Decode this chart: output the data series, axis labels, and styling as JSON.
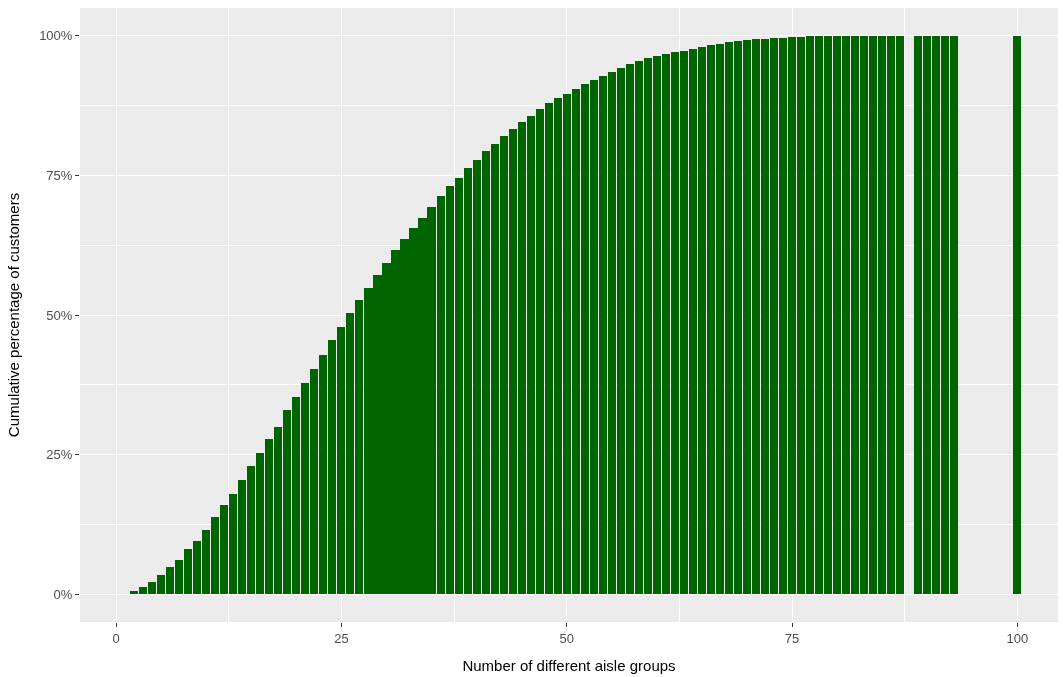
{
  "chart_data": {
    "type": "bar",
    "xlabel": "Number of different aisle groups",
    "ylabel": "Cumulative percentage of customers",
    "color": "#006400",
    "x": [
      2,
      3,
      4,
      5,
      6,
      7,
      8,
      9,
      10,
      11,
      12,
      13,
      14,
      15,
      16,
      17,
      18,
      19,
      20,
      21,
      22,
      23,
      24,
      25,
      26,
      27,
      28,
      29,
      30,
      31,
      32,
      33,
      34,
      35,
      36,
      37,
      38,
      39,
      40,
      41,
      42,
      43,
      44,
      45,
      46,
      47,
      48,
      49,
      50,
      51,
      52,
      53,
      54,
      55,
      56,
      57,
      58,
      59,
      60,
      61,
      62,
      63,
      64,
      65,
      66,
      67,
      68,
      69,
      70,
      71,
      72,
      73,
      74,
      75,
      76,
      77,
      78,
      79,
      80,
      81,
      82,
      83,
      84,
      85,
      86,
      87,
      89,
      90,
      91,
      92,
      93,
      100
    ],
    "values": [
      0.5,
      1.2,
      2.2,
      3.5,
      4.8,
      6.1,
      8.0,
      9.6,
      11.5,
      13.8,
      15.9,
      18.0,
      20.4,
      22.9,
      25.3,
      27.8,
      30.0,
      32.9,
      35.3,
      37.9,
      40.4,
      42.9,
      45.5,
      47.8,
      50.4,
      52.7,
      54.9,
      57.2,
      59.4,
      61.7,
      63.6,
      65.5,
      67.4,
      69.4,
      71.4,
      73.1,
      74.6,
      76.3,
      77.8,
      79.4,
      80.7,
      82.0,
      83.4,
      84.6,
      85.6,
      86.9,
      87.9,
      88.8,
      89.6,
      90.4,
      91.3,
      92.1,
      92.8,
      93.6,
      94.3,
      95.0,
      95.5,
      96.0,
      96.4,
      96.8,
      97.1,
      97.3,
      97.7,
      98.0,
      98.3,
      98.6,
      98.9,
      99.0,
      99.2,
      99.4,
      99.5,
      99.6,
      99.7,
      99.8,
      99.8,
      99.9,
      100,
      100,
      100,
      100,
      100,
      100,
      100,
      100,
      100,
      100,
      100,
      100,
      100,
      100,
      100,
      100
    ],
    "xlim": [
      -4,
      104.5
    ],
    "xticks": [
      0,
      25,
      50,
      75,
      100
    ],
    "ylim": [
      -5,
      105
    ],
    "yticks": [
      {
        "value": 0,
        "label": "0%"
      },
      {
        "value": 25,
        "label": "25%"
      },
      {
        "value": 50,
        "label": "50%"
      },
      {
        "value": 75,
        "label": "75%"
      },
      {
        "value": 100,
        "label": "100%"
      }
    ],
    "grid": true
  }
}
